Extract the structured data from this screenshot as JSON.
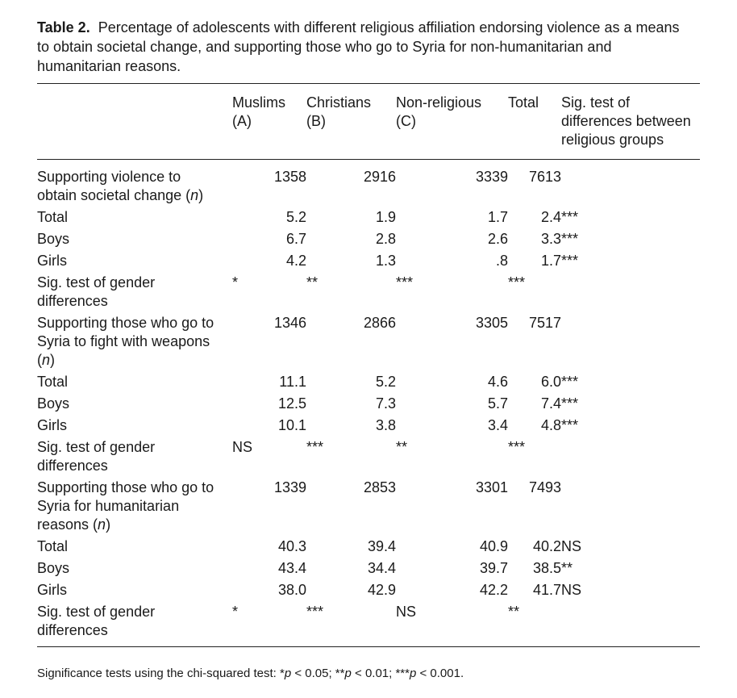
{
  "title": {
    "label": "Table 2.",
    "text": "Percentage of adolescents with different religious affiliation endorsing violence as a means to obtain societal change, and supporting those who go to Syria for non-humanitarian and humanitarian reasons."
  },
  "table": {
    "header": [
      [
        "Muslims",
        "(A)"
      ],
      [
        "Christians",
        "(B)"
      ],
      [
        "Non-religious",
        "(C)"
      ],
      [
        "Total"
      ],
      [
        "Sig. test of",
        "differences between",
        "religious groups"
      ]
    ],
    "rows": [
      {
        "label": [
          "Supporting violence to obtain societal change (",
          "n",
          ")"
        ],
        "cells": [
          "1358",
          "2916",
          "3339",
          "7613",
          ""
        ]
      },
      {
        "label": [
          "Total"
        ],
        "cells": [
          "5.2",
          "1.9",
          "1.7",
          "2.4",
          "***"
        ]
      },
      {
        "label": [
          "Boys"
        ],
        "cells": [
          "6.7",
          "2.8",
          "2.6",
          "3.3",
          "***"
        ]
      },
      {
        "label": [
          "Girls"
        ],
        "cells": [
          "4.2",
          "1.3",
          ".8",
          "1.7",
          "***"
        ]
      },
      {
        "label": [
          "Sig. test of gender differences"
        ],
        "cells": [
          "*",
          "**",
          "***",
          "***",
          ""
        ]
      },
      {
        "label": [
          "Supporting those who go to Syria to fight with weapons (",
          "n",
          ")"
        ],
        "cells": [
          "1346",
          "2866",
          "3305",
          "7517",
          ""
        ]
      },
      {
        "label": [
          "Total"
        ],
        "cells": [
          "11.1",
          "5.2",
          "4.6",
          "6.0",
          "***"
        ]
      },
      {
        "label": [
          "Boys"
        ],
        "cells": [
          "12.5",
          "7.3",
          "5.7",
          "7.4",
          "***"
        ]
      },
      {
        "label": [
          "Girls"
        ],
        "cells": [
          "10.1",
          "3.8",
          "3.4",
          "4.8",
          "***"
        ]
      },
      {
        "label": [
          "Sig. test of gender differences"
        ],
        "cells": [
          "NS",
          "***",
          "**",
          "***",
          ""
        ]
      },
      {
        "label": [
          "Supporting those who go to Syria for humanitarian reasons (",
          "n",
          ")"
        ],
        "cells": [
          "1339",
          "2853",
          "3301",
          "7493",
          ""
        ]
      },
      {
        "label": [
          "Total"
        ],
        "cells": [
          "40.3",
          "39.4",
          "40.9",
          "40.2",
          "NS"
        ]
      },
      {
        "label": [
          "Boys"
        ],
        "cells": [
          "43.4",
          "34.4",
          "39.7",
          "38.5",
          "**"
        ]
      },
      {
        "label": [
          "Girls"
        ],
        "cells": [
          "38.0",
          "42.9",
          "42.2",
          "41.7",
          "NS"
        ]
      },
      {
        "label": [
          "Sig. test of gender differences"
        ],
        "cells": [
          "*",
          "***",
          "NS",
          "**",
          ""
        ]
      }
    ]
  },
  "footnote": [
    "Significance tests using the chi-squared test: *",
    "p",
    " < 0.05; **",
    "p",
    " < 0.01; ***",
    "p",
    " < 0.001."
  ]
}
